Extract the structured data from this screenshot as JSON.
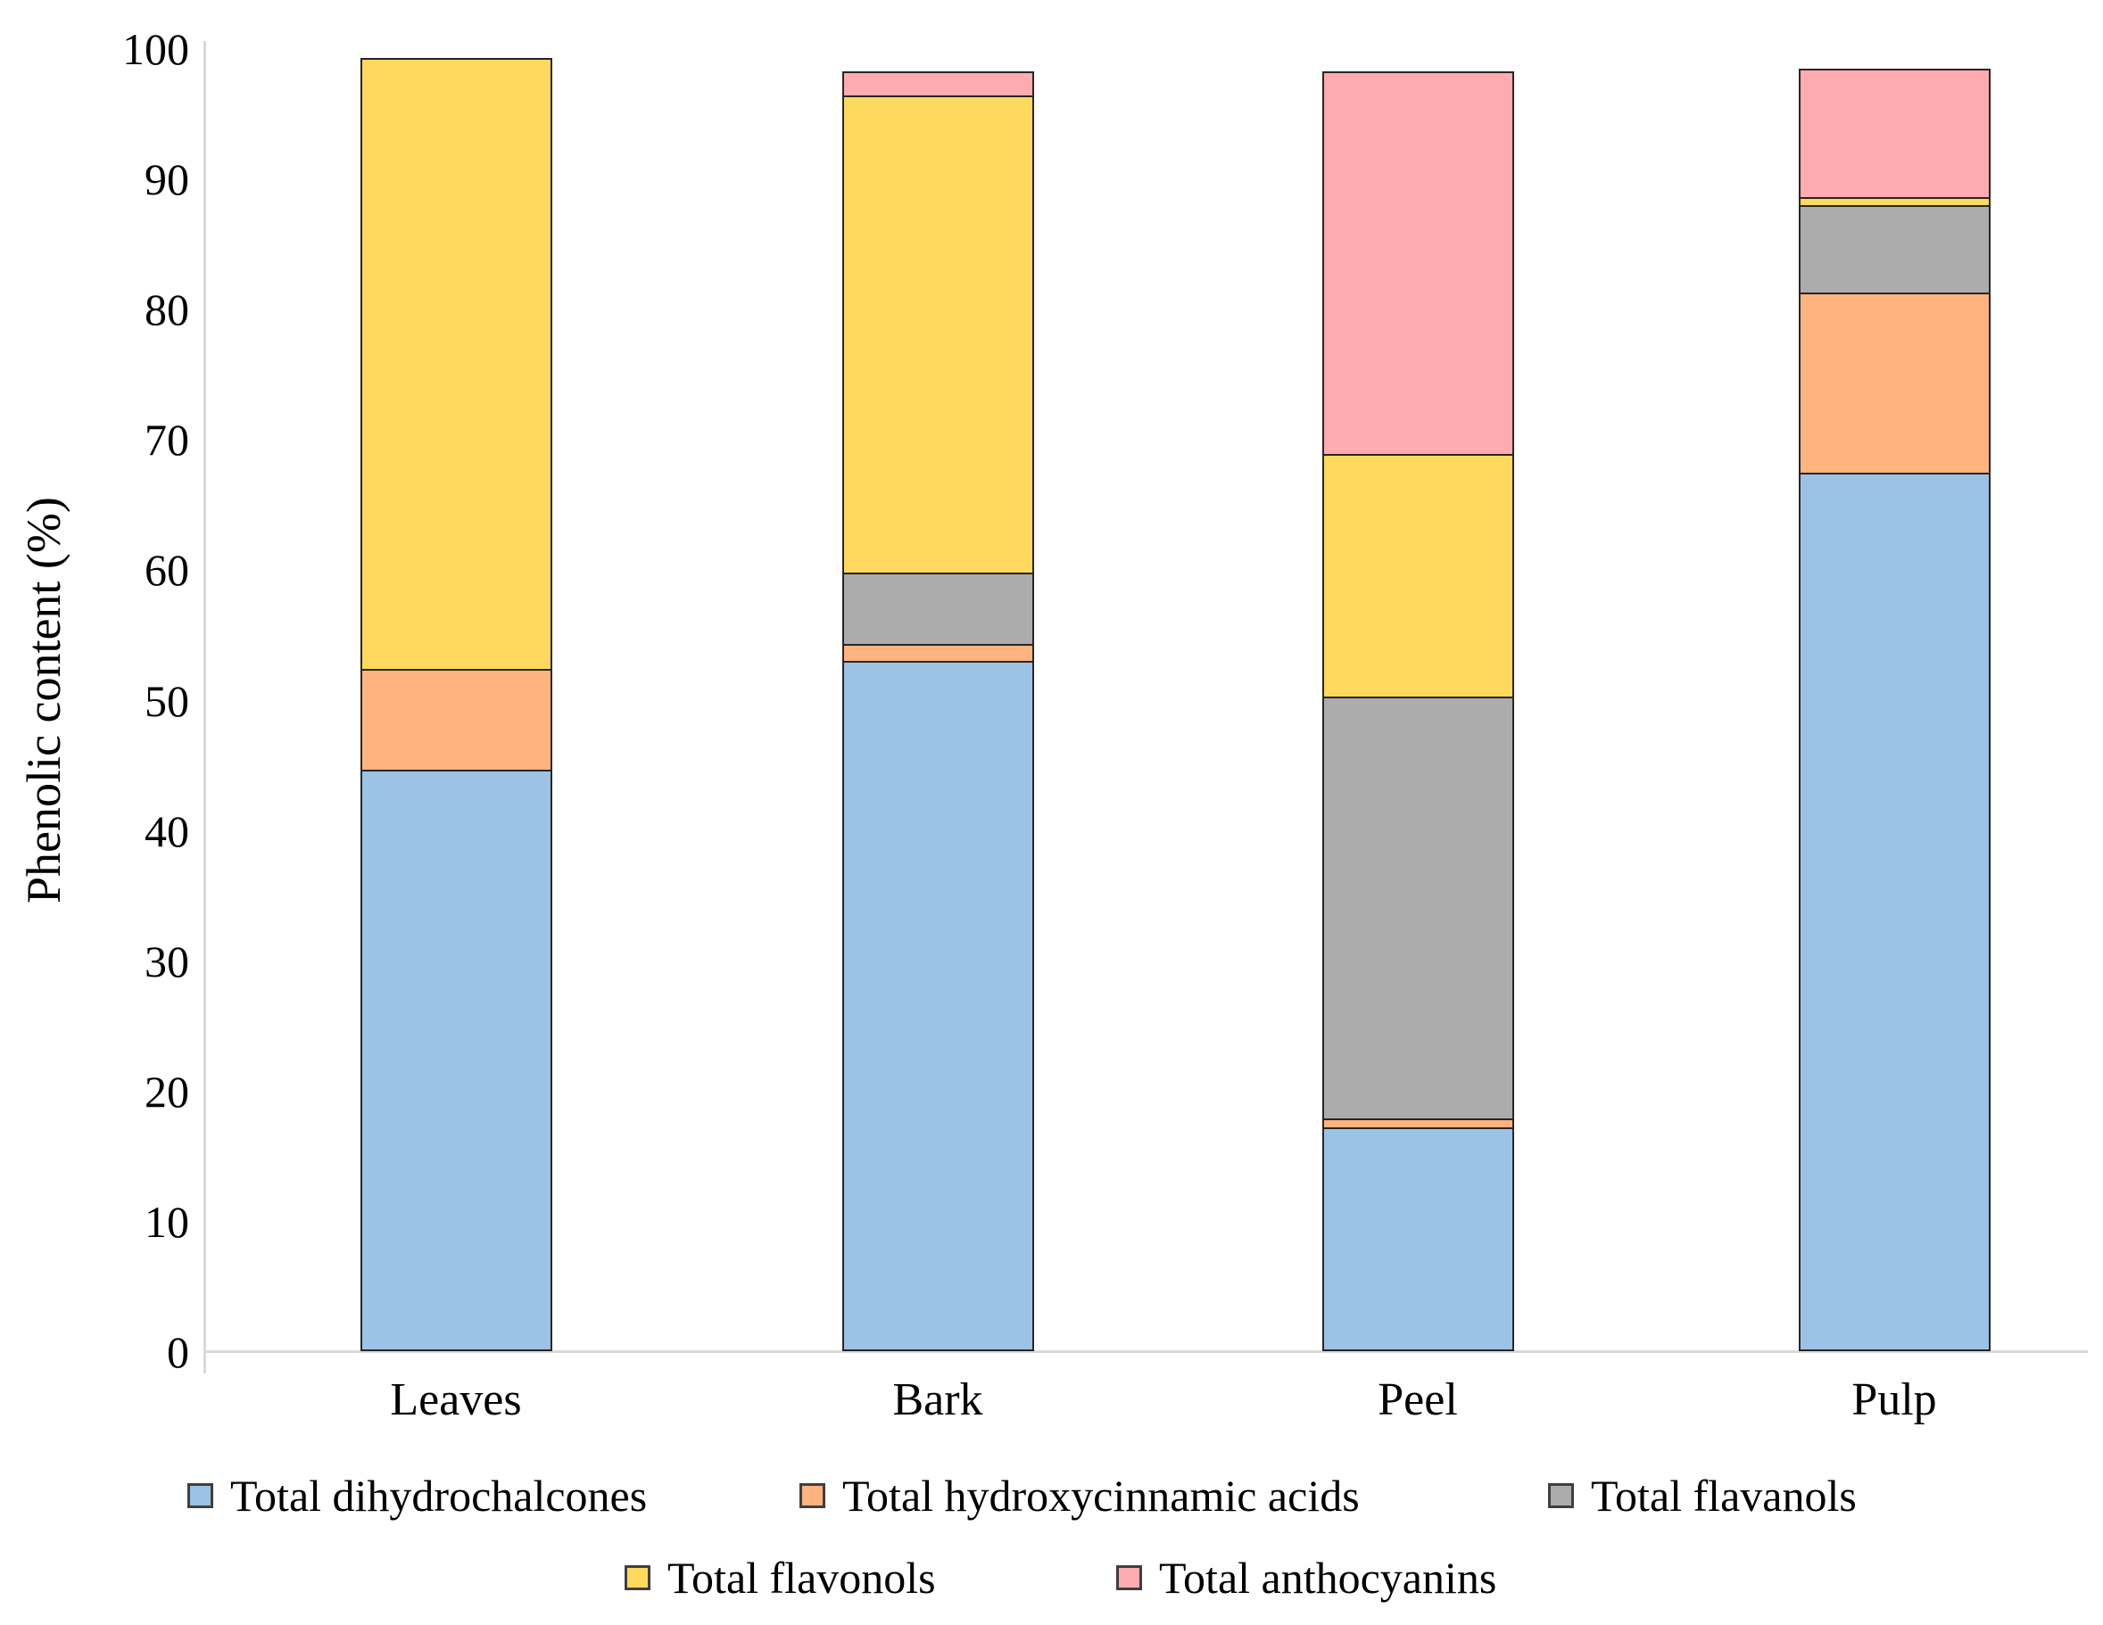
{
  "chart_data": {
    "type": "bar",
    "stacked": true,
    "title": "",
    "xlabel": "",
    "ylabel": "Phenolic content (%)",
    "ylim": [
      0,
      100
    ],
    "yticks": [
      0,
      10,
      20,
      30,
      40,
      50,
      60,
      70,
      80,
      90,
      100
    ],
    "grid": false,
    "legend_position": "bottom",
    "categories": [
      "Leaves",
      "Bark",
      "Peel",
      "Pulp"
    ],
    "series": [
      {
        "name": "Total dihydrochalcones",
        "color": "#9cc3e5",
        "values": [
          44.6,
          53.0,
          17.2,
          67.4
        ]
      },
      {
        "name": "Total hydroxycinnamic acids",
        "color": "#ffb37e",
        "values": [
          7.9,
          1.4,
          0.8,
          14.0
        ]
      },
      {
        "name": "Total flavanols",
        "color": "#acacac",
        "values": [
          0,
          5.6,
          32.5,
          6.8
        ]
      },
      {
        "name": "Total flavonols",
        "color": "#ffd95e",
        "values": [
          47.0,
          36.8,
          18.8,
          0.8
        ]
      },
      {
        "name": "Total anthocyanins",
        "color": "#ffabb0",
        "values": [
          0,
          2.0,
          29.5,
          10.0
        ]
      }
    ],
    "axis_color": "#d9d9d9",
    "bar_border_color": "#262626"
  }
}
